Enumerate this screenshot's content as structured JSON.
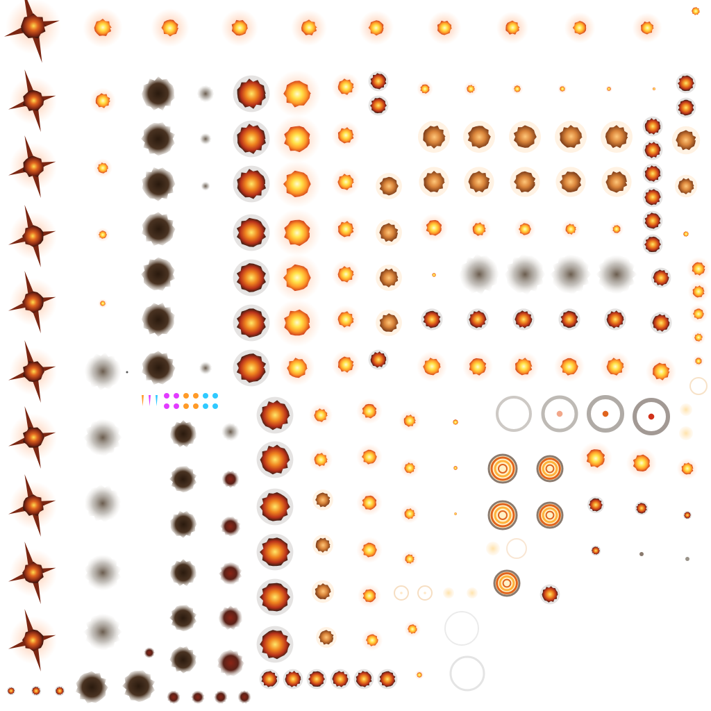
{
  "sheet": {
    "name": "explosion-effects-sprite-atlas"
  },
  "palette": {
    "yellow": "#fff36a",
    "orange": "#ff9a28",
    "red": "#d0311a",
    "dark_red": "#6e1a12",
    "smoke": "#3d2a1c",
    "grey_smoke": "#9a9389",
    "glow": "#ffb888",
    "ring_grey": "#8f8f8f",
    "magenta": "#e23bff",
    "cyan": "#2fc9ff"
  }
}
